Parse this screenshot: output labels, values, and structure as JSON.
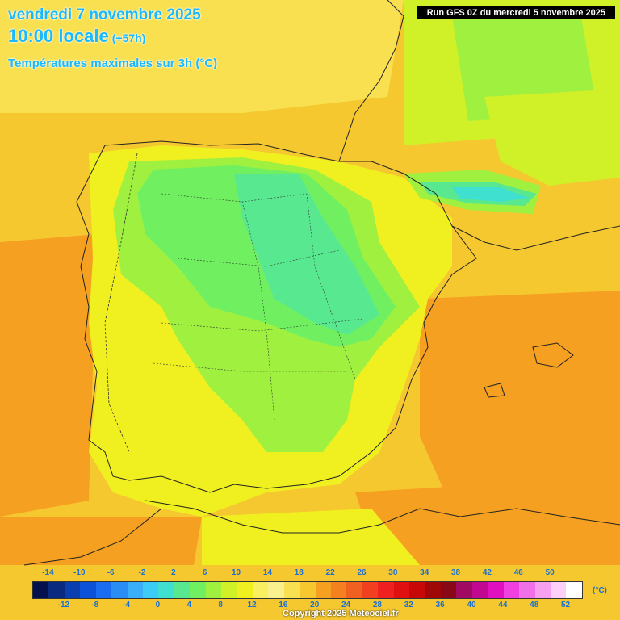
{
  "header": {
    "date": "vendredi 7 novembre 2025",
    "time": "10:00 locale",
    "offset": "(+57h)",
    "variable": "Températures maximales sur 3h (°C)",
    "run": "Run GFS 0Z du mercredi 5 novembre 2025"
  },
  "legend": {
    "top_labels": [
      "-14",
      "-10",
      "-6",
      "-2",
      "2",
      "6",
      "10",
      "14",
      "18",
      "22",
      "26",
      "30",
      "34",
      "38",
      "42",
      "46",
      "50"
    ],
    "bottom_labels": [
      "-12",
      "-8",
      "-4",
      "0",
      "4",
      "8",
      "12",
      "16",
      "20",
      "24",
      "28",
      "32",
      "36",
      "40",
      "44",
      "48",
      "52"
    ],
    "unit": "(°C)",
    "colors": [
      "#04114d",
      "#0a2a80",
      "#0a3fb0",
      "#0b52d8",
      "#1a6cf0",
      "#2a8cf5",
      "#3aaef8",
      "#3cccf5",
      "#40e0d0",
      "#58e890",
      "#70f060",
      "#a0f040",
      "#d0f028",
      "#f0f020",
      "#f8f060",
      "#faf090",
      "#f8e050",
      "#f6c830",
      "#f5a020",
      "#f58020",
      "#f06020",
      "#f04020",
      "#ee2020",
      "#e01010",
      "#c80808",
      "#a00808",
      "#880818",
      "#a00a60",
      "#c00890",
      "#e010c0",
      "#f040e0",
      "#f070e8",
      "#f8a0f0",
      "#fcd0f8",
      "#ffffff"
    ]
  },
  "copyright": "Copyright 2025 Meteociel.fr"
}
